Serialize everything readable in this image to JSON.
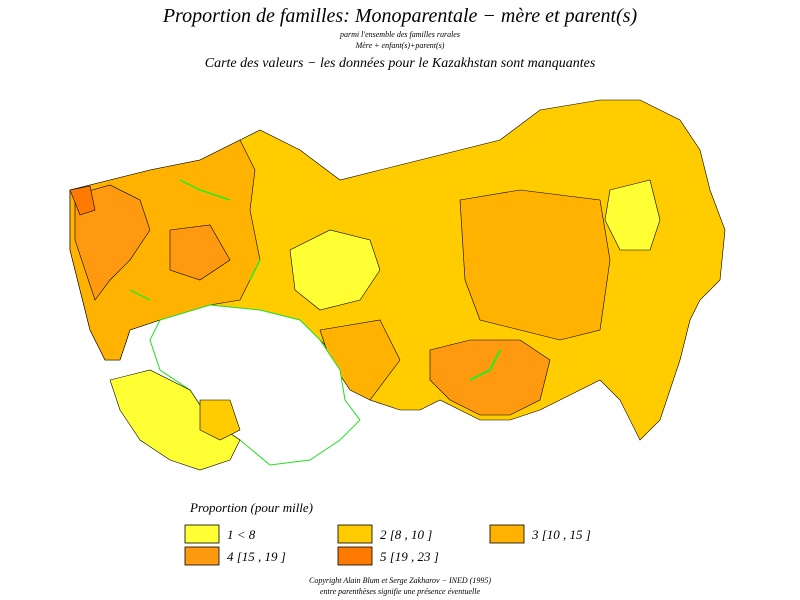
{
  "header": {
    "title": "Proportion de familles: Monoparentale − mère et parent(s)",
    "subtitle_1": "parmi l'ensemble des familles rurales",
    "subtitle_2": "Mère + enfant(s)+parent(s)",
    "subtitle_3": "Carte des valeurs − les données pour le Kazakhstan sont manquantes"
  },
  "legend": {
    "title": "Proportion (pour mille)",
    "items": [
      {
        "label": "1 < 8",
        "color": "#ffff33"
      },
      {
        "label": "2 [8 , 10 ]",
        "color": "#ffcc00"
      },
      {
        "label": "3 [10 , 15 ]",
        "color": "#ffb300"
      },
      {
        "label": "4 [15 , 19 ]",
        "color": "#ff9a10"
      },
      {
        "label": "5 [19 , 23 ]",
        "color": "#ff7a00"
      }
    ]
  },
  "footer": {
    "line_1": "Copyright Alain Blum et Serge Zakharov − INED (1995)",
    "line_2": "entre parenthèses signifie une présence éventuelle"
  }
}
